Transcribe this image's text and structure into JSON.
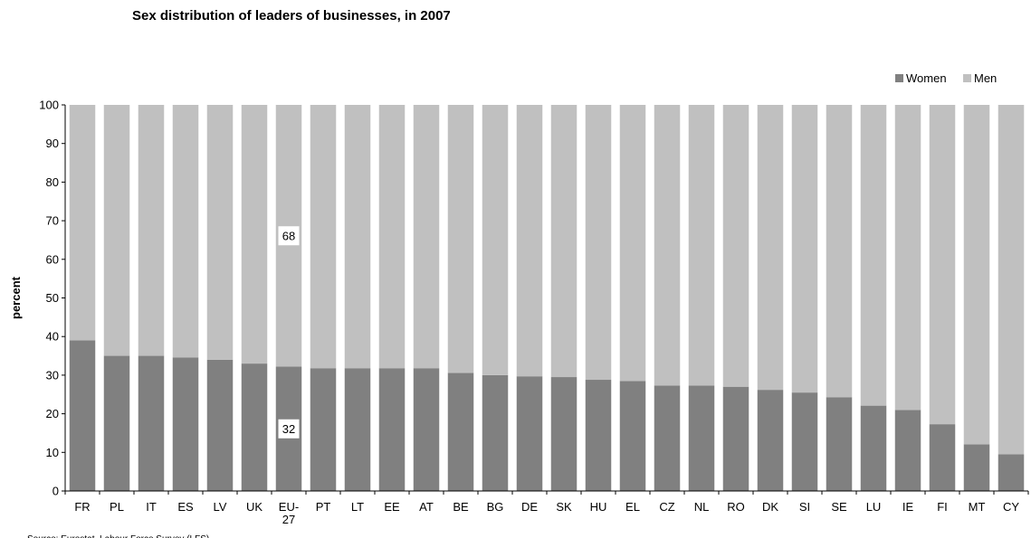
{
  "chart_data": {
    "type": "bar",
    "stacked": true,
    "title": "Sex distribution of leaders of businesses, in 2007",
    "ylabel": "percent",
    "xlabel": "",
    "ylim": [
      0,
      100
    ],
    "yticks": [
      0,
      10,
      20,
      30,
      40,
      50,
      60,
      70,
      80,
      90,
      100
    ],
    "categories": [
      "FR",
      "PL",
      "IT",
      "ES",
      "LV",
      "UK",
      "EU-27",
      "PT",
      "LT",
      "EE",
      "AT",
      "BE",
      "BG",
      "DE",
      "SK",
      "HU",
      "EL",
      "CZ",
      "NL",
      "RO",
      "DK",
      "SI",
      "SE",
      "LU",
      "IE",
      "FI",
      "MT",
      "CY"
    ],
    "series": [
      {
        "name": "Women",
        "color": "#808080",
        "values": [
          39,
          35,
          35,
          34.6,
          34,
          33,
          32.2,
          31.8,
          31.8,
          31.8,
          31.8,
          30.6,
          30,
          29.7,
          29.5,
          28.8,
          28.5,
          27.3,
          27.3,
          27,
          26.2,
          25.5,
          24.3,
          22.1,
          21,
          17.3,
          12.1,
          9.5
        ]
      },
      {
        "name": "Men",
        "color": "#c0c0c0",
        "values": [
          61,
          65,
          65,
          65.4,
          66,
          67,
          67.8,
          68.2,
          68.2,
          68.2,
          68.2,
          69.4,
          70,
          70.3,
          70.5,
          71.2,
          71.5,
          72.7,
          72.7,
          73,
          73.8,
          74.5,
          75.7,
          77.9,
          79,
          82.7,
          87.9,
          90.5
        ]
      }
    ],
    "annotations": [
      {
        "category": "EU-27",
        "series": "Women",
        "text": "32"
      },
      {
        "category": "EU-27",
        "series": "Men",
        "text": "68"
      }
    ],
    "legend": {
      "placement": "top-right",
      "items": [
        "Women",
        "Men"
      ]
    },
    "grid": false,
    "source_note": "Source: Eurostat, Labour Force Survey (LFS)"
  }
}
